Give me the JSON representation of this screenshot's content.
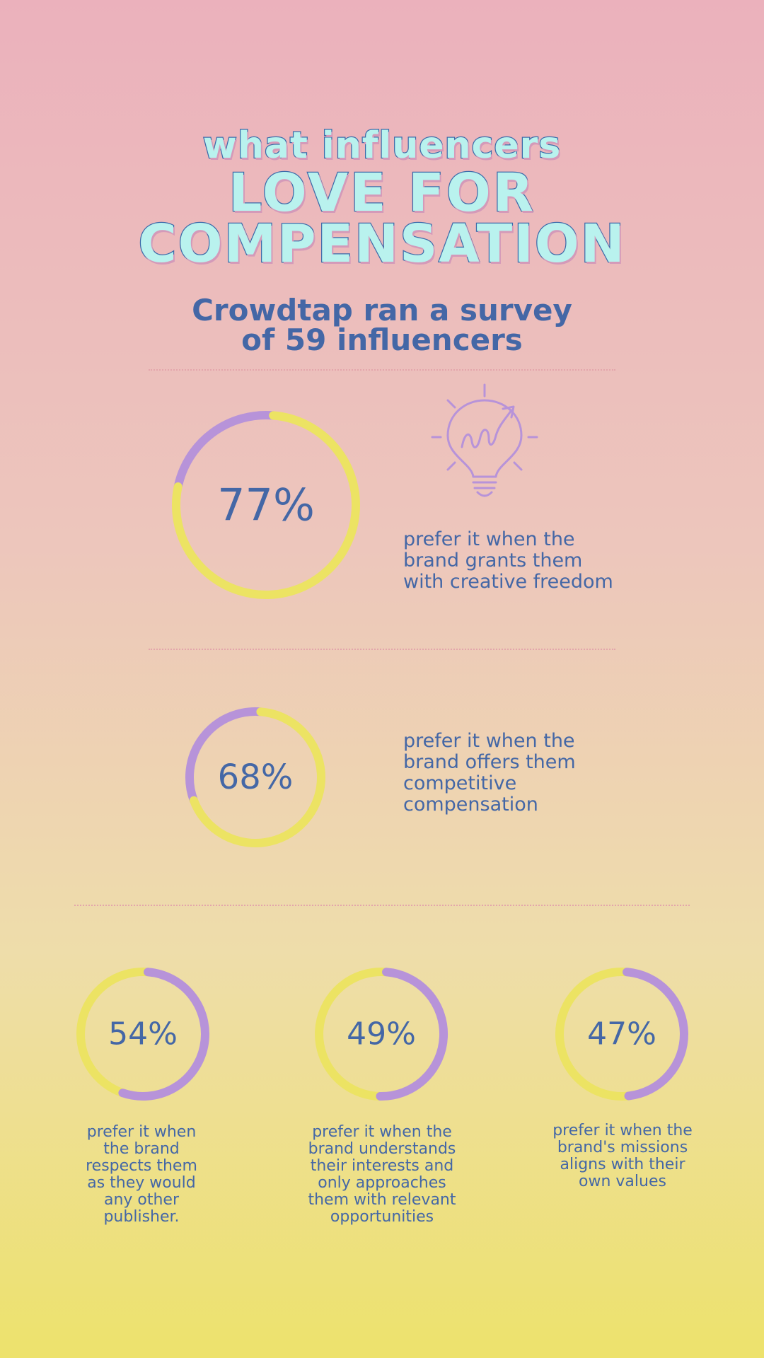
{
  "header": {
    "line1": "what influencers",
    "line2": "LOVE FOR",
    "line3": "COMPENSATION",
    "survey_line1": "Crowdtap ran a survey",
    "survey_line2": "of 59 influencers"
  },
  "colors": {
    "accent_purple": "#b793d9",
    "accent_yellow": "#ece363",
    "text_blue": "#4467a6"
  },
  "icons": [
    "lightbulb-growth-icon"
  ],
  "chart_data": {
    "type": "donut",
    "stats": [
      {
        "value": 77,
        "label": "77%",
        "caption": [
          "prefer it when the",
          "brand grants them",
          "with creative freedom"
        ]
      },
      {
        "value": 68,
        "label": "68%",
        "caption": [
          "prefer it when the",
          "brand offers them",
          "competitive",
          "compensation"
        ]
      },
      {
        "value": 54,
        "label": "54%",
        "caption": [
          "prefer it when",
          "the brand",
          "respects them",
          "as they would",
          "any other",
          "publisher."
        ]
      },
      {
        "value": 49,
        "label": "49%",
        "caption": [
          "prefer it when the",
          "brand understands",
          "their interests and",
          "only approaches",
          "them with relevant",
          "opportunities"
        ]
      },
      {
        "value": 47,
        "label": "47%",
        "caption": [
          "prefer it when the",
          "brand's missions",
          "aligns with their",
          "own values"
        ]
      }
    ]
  }
}
